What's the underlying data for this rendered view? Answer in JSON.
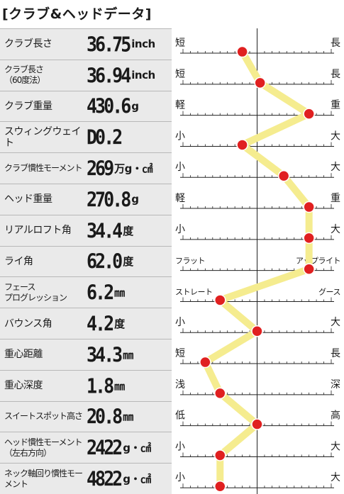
{
  "header": {
    "title": "[クラブ&ヘッドデータ]"
  },
  "chart_data": {
    "type": "line",
    "rows": [
      {
        "label": "クラブ長さ",
        "value": "36.75",
        "unit": "inch",
        "left": "短",
        "right": "長",
        "pos": 0.4
      },
      {
        "label": "クラブ長さ\n（60度法）",
        "value": "36.94",
        "unit": "inch",
        "left": "短",
        "right": "長",
        "pos": 0.52
      },
      {
        "label": "クラブ重量",
        "value": "430.6",
        "unit": "g",
        "left": "軽",
        "right": "重",
        "pos": 0.85
      },
      {
        "label": "スウィングウェイト",
        "value": "D0.2",
        "unit": "",
        "left": "小",
        "right": "大",
        "pos": 0.4
      },
      {
        "label": "クラブ慣性モーメント",
        "value": "269",
        "unit": "万g・㎠",
        "left": "小",
        "right": "大",
        "pos": 0.68
      },
      {
        "label": "ヘッド重量",
        "value": "270.8",
        "unit": "g",
        "left": "軽",
        "right": "重",
        "pos": 0.85
      },
      {
        "label": "リアルロフト角",
        "value": "34.4",
        "unit": "度",
        "left": "小",
        "right": "大",
        "pos": 0.85
      },
      {
        "label": "ライ角",
        "value": "62.0",
        "unit": "度",
        "left": "フラット",
        "right": "アップライト",
        "pos": 0.85
      },
      {
        "label": "フェース\nプログレッション",
        "value": "6.2",
        "unit": "㎜",
        "left": "ストレート",
        "right": "グース",
        "pos": 0.25
      },
      {
        "label": "バウンス角",
        "value": "4.2",
        "unit": "度",
        "left": "小",
        "right": "大",
        "pos": 0.5
      },
      {
        "label": "重心距離",
        "value": "34.3",
        "unit": "㎜",
        "left": "短",
        "right": "長",
        "pos": 0.15
      },
      {
        "label": "重心深度",
        "value": "1.8",
        "unit": "㎜",
        "left": "浅",
        "right": "深",
        "pos": 0.25
      },
      {
        "label": "スイートスポット高さ",
        "value": "20.8",
        "unit": "㎜",
        "left": "低",
        "right": "高",
        "pos": 0.5
      },
      {
        "label": "ヘッド慣性モーメント\n（左右方向）",
        "value": "2422",
        "unit": "g・㎠",
        "left": "小",
        "right": "大",
        "pos": 0.25
      },
      {
        "label": "ネック軸回り慣性モーメント",
        "value": "4822",
        "unit": "g・㎠",
        "left": "小",
        "right": "大",
        "pos": 0.25
      }
    ],
    "colors": {
      "line": "#f5ec8f",
      "marker": "#e02020",
      "marker_stroke": "#ffffff",
      "axis": "#222222",
      "panel": "#eaeaea"
    }
  }
}
